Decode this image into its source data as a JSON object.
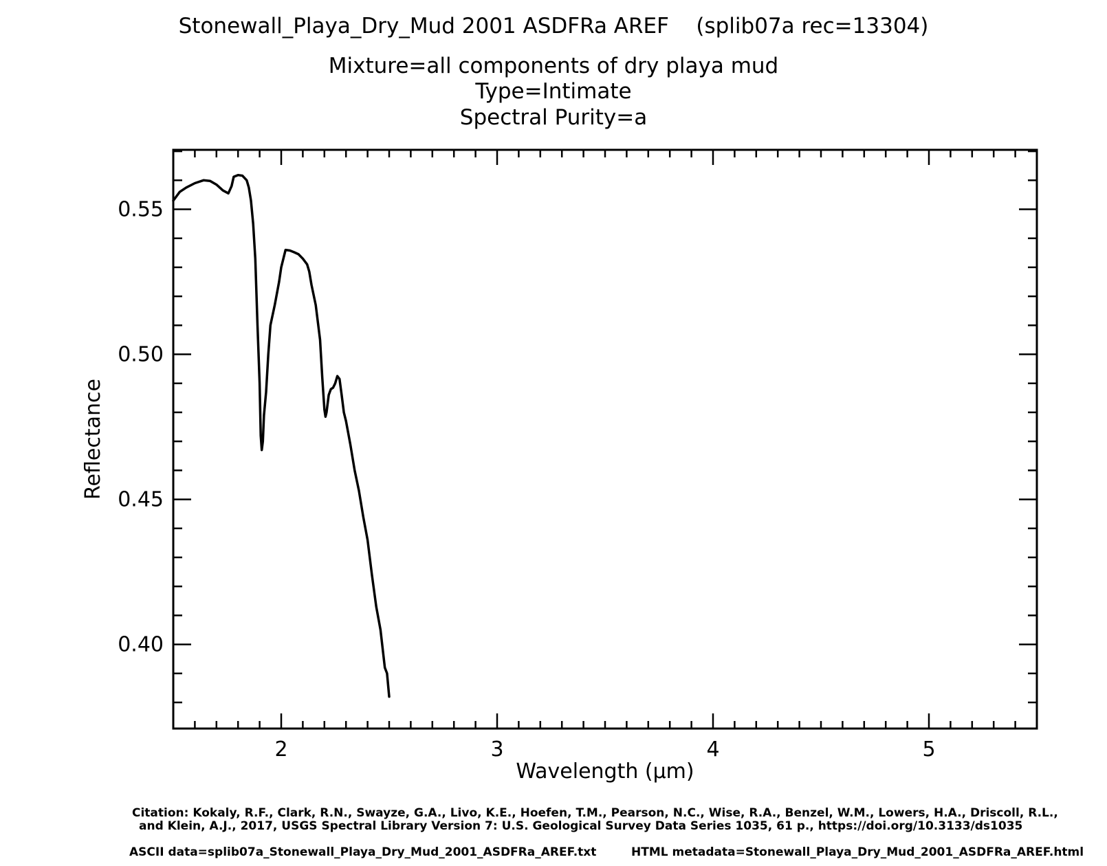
{
  "chart_data": {
    "type": "line",
    "title": "Stonewall_Playa_Dry_Mud 2001 ASDFRa AREF    (splib07a rec=13304)",
    "subtitle": [
      "Mixture=all components of dry playa mud",
      "Type=Intimate",
      "Spectral Purity=a"
    ],
    "xlabel": "Wavelength (μm)",
    "ylabel": "Reflectance",
    "xlim": [
      1.5,
      5.5
    ],
    "ylim": [
      0.371,
      0.5705
    ],
    "x_ticks": [
      2,
      3,
      4,
      5
    ],
    "x_tick_labels": [
      "2",
      "3",
      "4",
      "5"
    ],
    "y_ticks": [
      0.4,
      0.45,
      0.5,
      0.55
    ],
    "y_tick_labels": [
      "0.40",
      "0.45",
      "0.50",
      "0.55"
    ],
    "grid": false,
    "series": [
      {
        "values_x": [
          1.5,
          1.53,
          1.56,
          1.6,
          1.64,
          1.67,
          1.7,
          1.73,
          1.755,
          1.77,
          1.78,
          1.8,
          1.82,
          1.84,
          1.85,
          1.86,
          1.87,
          1.88,
          1.89,
          1.9,
          1.905,
          1.91,
          1.915,
          1.92,
          1.93,
          1.94,
          1.95,
          1.97,
          1.99,
          2.0,
          2.02,
          2.04,
          2.06,
          2.08,
          2.1,
          2.12,
          2.13,
          2.14,
          2.16,
          2.18,
          2.19,
          2.2,
          2.205,
          2.21,
          2.22,
          2.23,
          2.24,
          2.25,
          2.26,
          2.27,
          2.28,
          2.29,
          2.3,
          2.32,
          2.34,
          2.36,
          2.38,
          2.4,
          2.42,
          2.44,
          2.46,
          2.48,
          2.49,
          2.5
        ],
        "values_y": [
          0.553,
          0.556,
          0.5575,
          0.559,
          0.56,
          0.5598,
          0.5585,
          0.5565,
          0.5555,
          0.558,
          0.5612,
          0.5618,
          0.5616,
          0.56,
          0.5575,
          0.553,
          0.545,
          0.533,
          0.51,
          0.49,
          0.472,
          0.467,
          0.47,
          0.479,
          0.487,
          0.5,
          0.51,
          0.517,
          0.525,
          0.53,
          0.536,
          0.5358,
          0.5352,
          0.5345,
          0.533,
          0.531,
          0.5285,
          0.524,
          0.517,
          0.505,
          0.492,
          0.481,
          0.4785,
          0.48,
          0.486,
          0.488,
          0.4885,
          0.49,
          0.4925,
          0.4915,
          0.486,
          0.48,
          0.477,
          0.469,
          0.46,
          0.453,
          0.444,
          0.436,
          0.424,
          0.413,
          0.405,
          0.392,
          0.39,
          0.382
        ]
      }
    ]
  },
  "footer": {
    "citation_line1": "Citation: Kokaly, R.F., Clark, R.N., Swayze, G.A., Livo, K.E., Hoefen, T.M., Pearson, N.C., Wise, R.A., Benzel, W.M., Lowers, H.A., Driscoll, R.L.,",
    "citation_line2": "and Klein, A.J., 2017, USGS Spectral Library Version 7: U.S. Geological Survey Data Series 1035, 61 p., https://doi.org/10.3133/ds1035",
    "ascii_data": "ASCII data=splib07a_Stonewall_Playa_Dry_Mud_2001_ASDFRa_AREF.txt",
    "html_metadata": "HTML metadata=Stonewall_Playa_Dry_Mud_2001_ASDFRa_AREF.html"
  }
}
